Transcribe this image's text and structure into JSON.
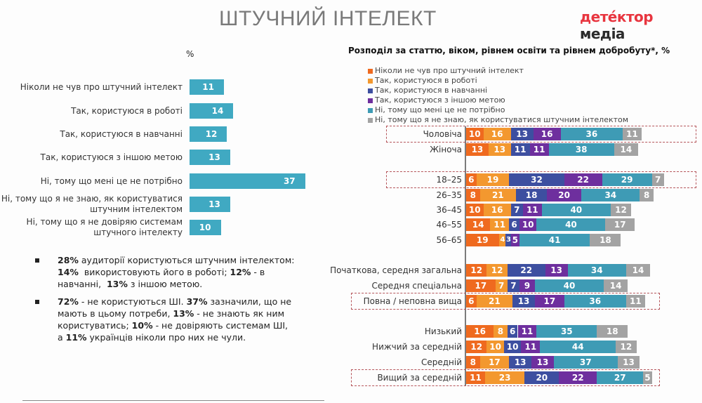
{
  "header": {
    "title": "ШТУЧНИЙ ІНТЕЛЕКТ",
    "logo_part1": "детéктор",
    "logo_part2": "медіа"
  },
  "colors": {
    "never_heard": "#ef6a1f",
    "work": "#f3982f",
    "study": "#3d4fa0",
    "other": "#6e2f9e",
    "not_needed": "#3e9bb5",
    "dont_know": "#a3a3a3",
    "left_bar": "#40a9c2",
    "highlight_box": "#b5555a"
  },
  "chart_data": [
    {
      "type": "bar",
      "orientation": "horizontal",
      "title": "",
      "unit_label": "%",
      "categories": [
        "Ніколи не чув про штучний інтелект",
        "Так, користуюся в роботі",
        "Так, користуюся в навчанні",
        "Так, користуюся з іншою метою",
        "Ні, тому що мені це не потрібно",
        "Ні, тому що я не знаю, як користуватися штучним інтелектом",
        "Ні, тому що я не довіряю системам штучного інтелекту"
      ],
      "category_lines": [
        [
          "Ніколи не чув про штучний інтелект"
        ],
        [
          "Так, користуюся в роботі"
        ],
        [
          "Так, користуюся в навчанні"
        ],
        [
          "Так, користуюся з іншою метою"
        ],
        [
          "Ні, тому що мені це не потрібно"
        ],
        [
          "Ні, тому що я не знаю, як користуватися",
          "штучним інтелектом"
        ],
        [
          "Ні, тому що я не довіряю системам",
          "штучного інтелекту"
        ]
      ],
      "values": [
        11,
        14,
        12,
        13,
        37,
        13,
        10
      ]
    },
    {
      "type": "bar",
      "orientation": "horizontal",
      "stacked": true,
      "title": "Розподіл за статтю, віком, рівнем освіти та рівнем добробуту*, %",
      "legend_position": "top-left",
      "series_names": [
        "Ніколи не чув про штучний інтелект",
        "Так, користуюся в роботі",
        "Так, користуюся в навчанні",
        "Так, користуюся з іншою метою",
        "Ні, тому що мені це не потрібно",
        "Ні, тому що я не знаю, як користуватися штучним інтелектом"
      ],
      "groups": [
        {
          "rows": [
            {
              "label": "Чоловіча",
              "values": [
                10,
                16,
                13,
                16,
                36,
                11
              ],
              "highlight": true
            },
            {
              "label": "Жіноча",
              "values": [
                13,
                13,
                11,
                11,
                38,
                14
              ],
              "highlight": false
            }
          ]
        },
        {
          "rows": [
            {
              "label": "18–25",
              "values": [
                6,
                19,
                32,
                22,
                29,
                7
              ],
              "highlight": true
            },
            {
              "label": "26–35",
              "values": [
                8,
                21,
                18,
                20,
                34,
                8
              ],
              "highlight": false
            },
            {
              "label": "36–45",
              "values": [
                10,
                16,
                7,
                11,
                40,
                12
              ],
              "highlight": false
            },
            {
              "label": "46–55",
              "values": [
                14,
                11,
                6,
                10,
                40,
                17
              ],
              "highlight": false
            },
            {
              "label": "56–65",
              "values": [
                19,
                4,
                3,
                5,
                41,
                18
              ],
              "highlight": false
            }
          ]
        },
        {
          "rows": [
            {
              "label": "Початкова, середня загальна",
              "values": [
                12,
                12,
                22,
                13,
                34,
                14
              ],
              "highlight": false
            },
            {
              "label": "Середня спеціальна",
              "values": [
                17,
                7,
                7,
                9,
                40,
                14
              ],
              "highlight": false
            },
            {
              "label": "Повна / неповна вища",
              "values": [
                6,
                21,
                13,
                17,
                36,
                11
              ],
              "highlight": true
            }
          ]
        },
        {
          "rows": [
            {
              "label": "Низький",
              "values": [
                16,
                8,
                6,
                11,
                35,
                18
              ],
              "highlight": false
            },
            {
              "label": "Нижчий за середній",
              "values": [
                12,
                10,
                10,
                11,
                44,
                12
              ],
              "highlight": false
            },
            {
              "label": "Середній",
              "values": [
                8,
                17,
                13,
                13,
                37,
                13
              ],
              "highlight": false
            },
            {
              "label": "Вищий за середній",
              "values": [
                11,
                23,
                20,
                22,
                27,
                5
              ],
              "highlight": true
            }
          ]
        }
      ]
    }
  ],
  "notes": [
    {
      "parts": [
        {
          "t": "28%",
          "b": true
        },
        {
          "t": " аудиторії користуються штучним інтелектом:",
          "b": false
        },
        {
          "br": true
        },
        {
          "t": "14%",
          "b": true
        },
        {
          "t": "  використовують його в роботі; ",
          "b": false
        },
        {
          "t": "12%",
          "b": true
        },
        {
          "t": " - в",
          "b": false
        },
        {
          "br": true
        },
        {
          "t": "навчанні,  ",
          "b": false
        },
        {
          "t": "13%",
          "b": true
        },
        {
          "t": " з іншою метою.",
          "b": false
        }
      ]
    },
    {
      "parts": [
        {
          "t": "72%",
          "b": true
        },
        {
          "t": " - не користуються ШІ. ",
          "b": false
        },
        {
          "t": "37%",
          "b": true
        },
        {
          "t": " зазначили, що не",
          "b": false
        },
        {
          "br": true
        },
        {
          "t": "мають в цьому потреби, ",
          "b": false
        },
        {
          "t": "13%",
          "b": true
        },
        {
          "t": " - не знають як ним",
          "b": false
        },
        {
          "br": true
        },
        {
          "t": "користуватись; ",
          "b": false
        },
        {
          "t": "10%",
          "b": true
        },
        {
          "t": " - не довіряють системам ШІ,",
          "b": false
        },
        {
          "br": true
        },
        {
          "t": "а ",
          "b": false
        },
        {
          "t": "11%",
          "b": true
        },
        {
          "t": " українців ніколи про них не чули.",
          "b": false
        }
      ]
    }
  ]
}
